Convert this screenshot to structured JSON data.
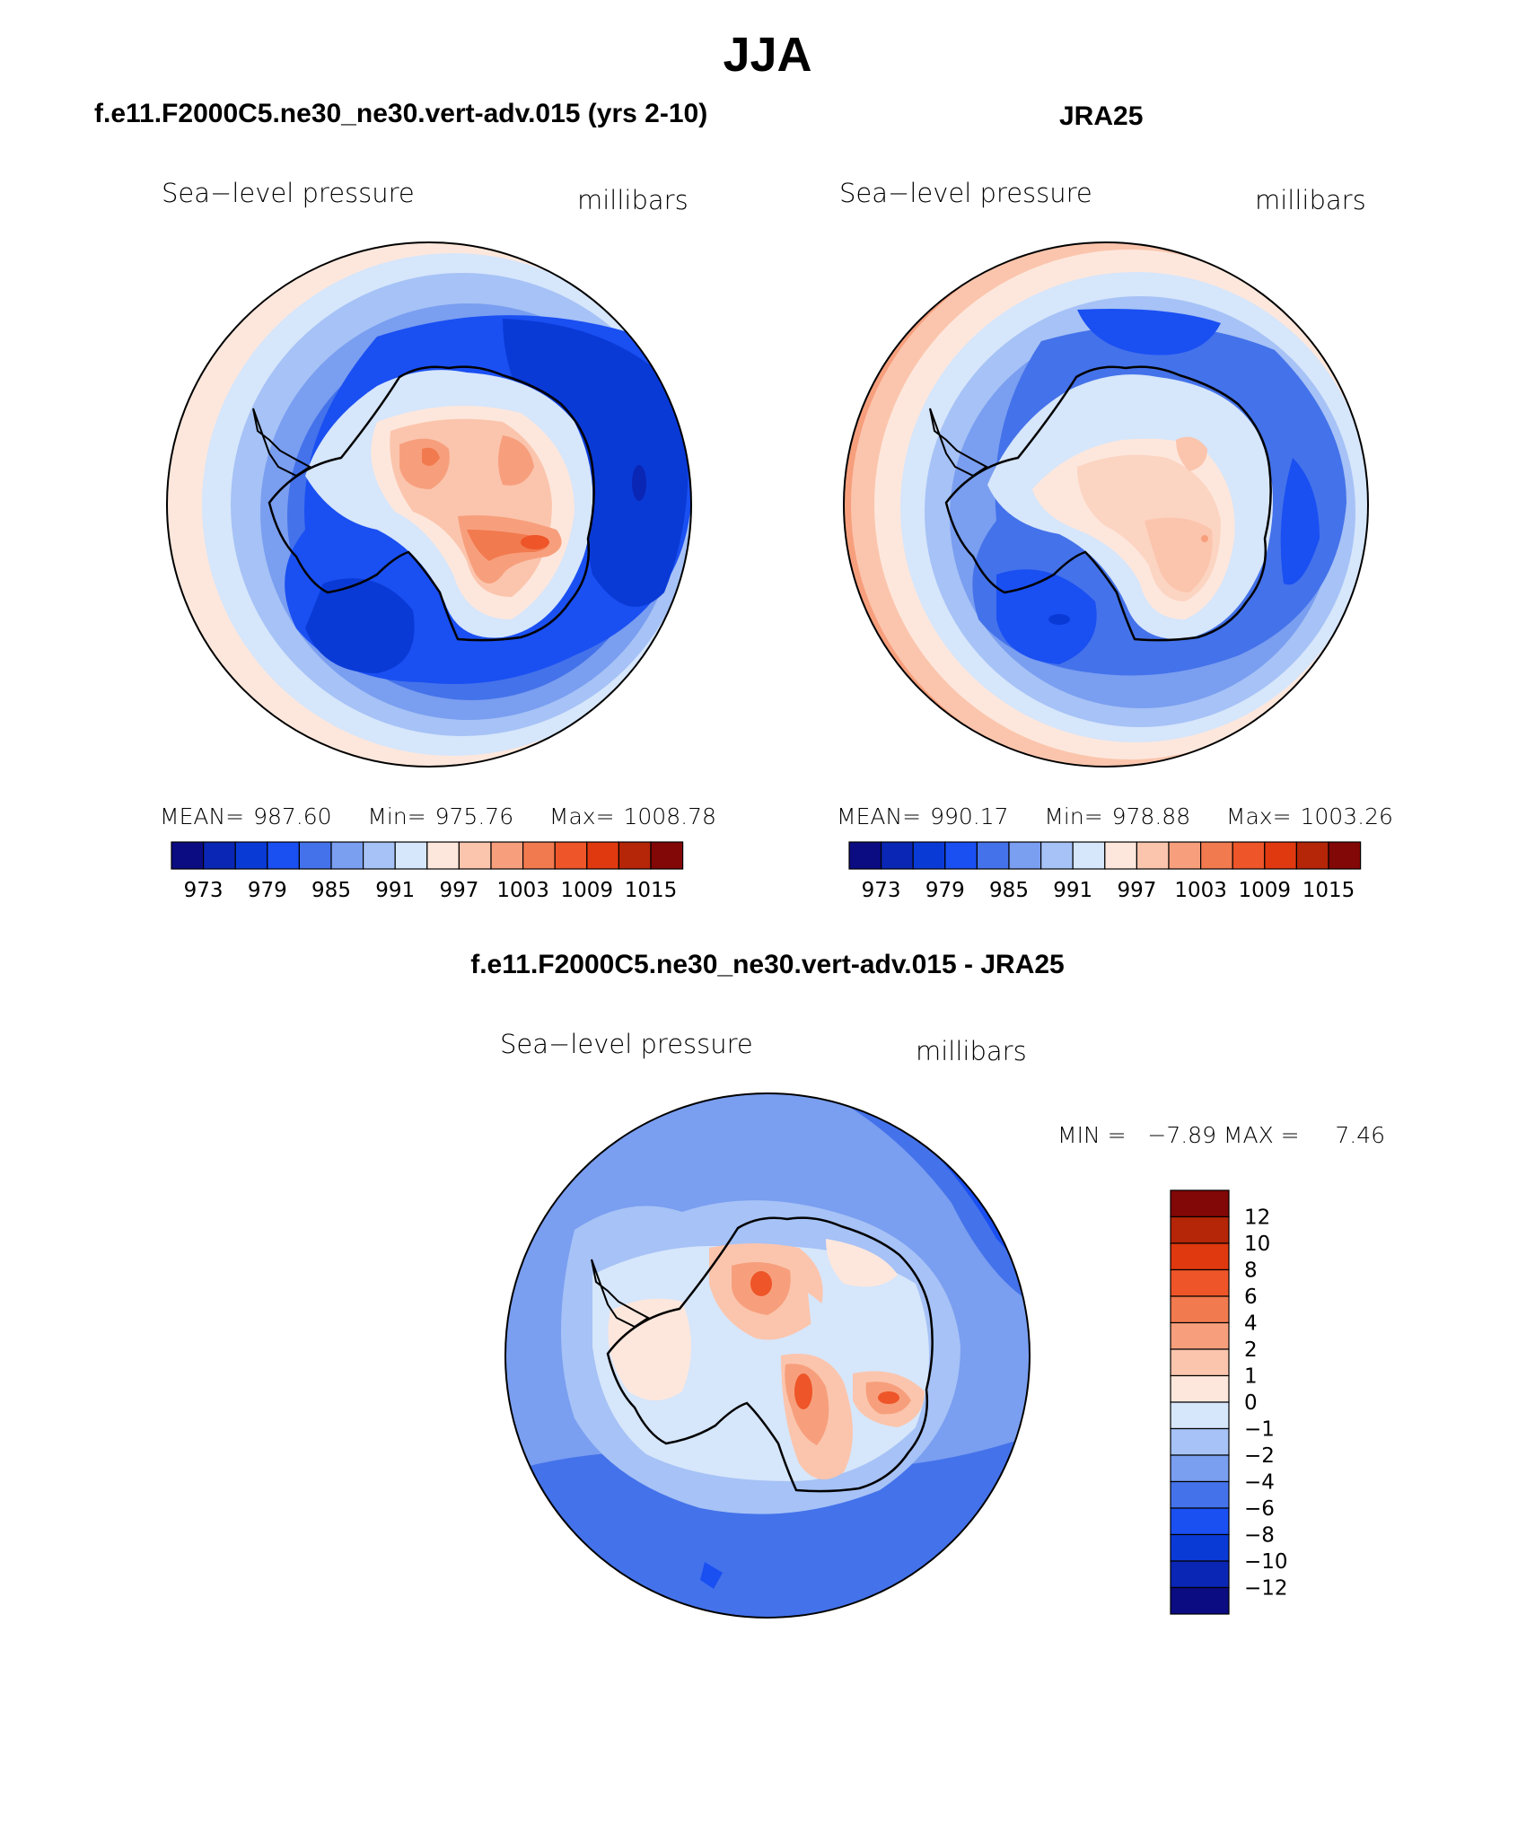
{
  "page_title": "JJA",
  "panels": [
    {
      "id": "model",
      "header": "f.e11.F2000C5.ne30_ne30.vert-adv.015 (yrs 2-10)",
      "variable": "Sea−level pressure",
      "units": "millibars",
      "stats": {
        "mean_label": "MEAN=",
        "mean": "987.60",
        "min_label": "Min=",
        "min": "975.76",
        "max_label": "Max=",
        "max": "1008.78"
      }
    },
    {
      "id": "obs",
      "header": "JRA25",
      "variable": "Sea−level pressure",
      "units": "millibars",
      "stats": {
        "mean_label": "MEAN=",
        "mean": "990.17",
        "min_label": "Min=",
        "min": "978.88",
        "max_label": "Max=",
        "max": "1003.26"
      }
    },
    {
      "id": "diff",
      "header": "f.e11.F2000C5.ne30_ne30.vert-adv.015 - JRA25",
      "variable": "Sea−level pressure",
      "units": "millibars",
      "minmax_text": "MIN =   −7.89 MAX =     7.46"
    }
  ],
  "colorbar_main": {
    "colors": [
      "#0b0b82",
      "#0a26b4",
      "#0a3ad6",
      "#1a4ff2",
      "#4472ea",
      "#7a9ef0",
      "#a6c2f6",
      "#d6e6fb",
      "#fde7dc",
      "#fbc5ad",
      "#f79f7d",
      "#f27a4f",
      "#ee5528",
      "#e0380f",
      "#b52508",
      "#820707"
    ],
    "tick_labels": [
      "973",
      "979",
      "985",
      "991",
      "997",
      "1003",
      "1009",
      "1015"
    ]
  },
  "colorbar_diff": {
    "colors": [
      "#820707",
      "#b52508",
      "#e0380f",
      "#ee5528",
      "#f27a4f",
      "#f79f7d",
      "#fbc5ad",
      "#fde7dc",
      "#d6e6fb",
      "#a6c2f6",
      "#7a9ef0",
      "#4472ea",
      "#1a4ff2",
      "#0a3ad6",
      "#0a26b4",
      "#0b0b82"
    ],
    "tick_labels": [
      "12",
      "10",
      "8",
      "6",
      "4",
      "2",
      "1",
      "0",
      "−1",
      "−2",
      "−4",
      "−6",
      "−8",
      "−10",
      "−12"
    ]
  }
}
